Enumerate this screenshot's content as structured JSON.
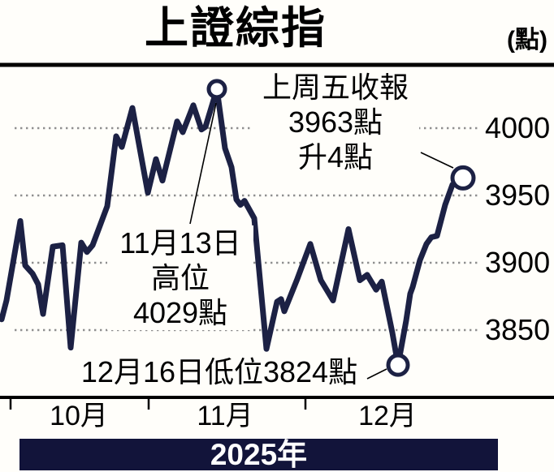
{
  "header": {
    "title": "上證綜指",
    "unit": "(點)"
  },
  "chart_data": {
    "type": "line",
    "title": "上證綜指",
    "unit_label": "(點)",
    "y_ticks": [
      4000,
      3950,
      3900,
      3850
    ],
    "ylim": [
      3810,
      4040
    ],
    "x_tick_labels": [
      "10月",
      "11月",
      "12月"
    ],
    "grid": "dotted-horizontal",
    "series": [
      {
        "name": "上證綜指",
        "points": [
          [
            2,
            3858
          ],
          [
            8,
            3872
          ],
          [
            25,
            3931
          ],
          [
            31,
            3898
          ],
          [
            40,
            3892
          ],
          [
            47,
            3884
          ],
          [
            53,
            3862
          ],
          [
            65,
            3912
          ],
          [
            77,
            3913
          ],
          [
            87,
            3837
          ],
          [
            100,
            3915
          ],
          [
            107,
            3908
          ],
          [
            114,
            3913
          ],
          [
            132,
            3942
          ],
          [
            143,
            3994
          ],
          [
            150,
            3986
          ],
          [
            163,
            4015
          ],
          [
            172,
            3985
          ],
          [
            182,
            3952
          ],
          [
            192,
            3977
          ],
          [
            200,
            3961
          ],
          [
            218,
            4005
          ],
          [
            225,
            3997
          ],
          [
            238,
            4017
          ],
          [
            248,
            3999
          ],
          [
            253,
            4001
          ],
          [
            267,
            4029
          ],
          [
            277,
            3985
          ],
          [
            285,
            3971
          ],
          [
            291,
            3947
          ],
          [
            296,
            3943
          ],
          [
            301,
            3946
          ],
          [
            313,
            3933
          ],
          [
            328,
            3836
          ],
          [
            341,
            3871
          ],
          [
            346,
            3873
          ],
          [
            350,
            3864
          ],
          [
            366,
            3888
          ],
          [
            382,
            3914
          ],
          [
            395,
            3887
          ],
          [
            410,
            3872
          ],
          [
            429,
            3925
          ],
          [
            443,
            3887
          ],
          [
            452,
            3891
          ],
          [
            463,
            3880
          ],
          [
            470,
            3886
          ],
          [
            483,
            3848
          ],
          [
            490,
            3824
          ],
          [
            500,
            3857
          ],
          [
            505,
            3877
          ],
          [
            508,
            3882
          ],
          [
            517,
            3902
          ],
          [
            525,
            3914
          ],
          [
            531,
            3919
          ],
          [
            538,
            3920
          ],
          [
            548,
            3943
          ],
          [
            557,
            3958
          ],
          [
            570,
            3963
          ]
        ]
      }
    ],
    "key_points": {
      "high": {
        "x": 267,
        "value": 4029,
        "date": "11月13日"
      },
      "low": {
        "x": 490,
        "value": 3824,
        "date": "12月16日"
      },
      "last": {
        "x": 570,
        "value": 3963,
        "note": "上周五收報，升4點"
      }
    }
  },
  "annotations": {
    "last_close": {
      "line1": "上周五收報",
      "line2": "3963點",
      "line3": "升4點"
    },
    "high": {
      "line1": "11月13日",
      "line2": "高位",
      "line3": "4029點"
    },
    "low": {
      "text": "12月16日低位3824點"
    }
  },
  "footer": {
    "year": "2025年"
  },
  "colors": {
    "line": "#1c2144",
    "banner": "#12143a",
    "grid": "#8f8f8f",
    "ink": "#000000",
    "marker_fill": "#ffffff"
  }
}
